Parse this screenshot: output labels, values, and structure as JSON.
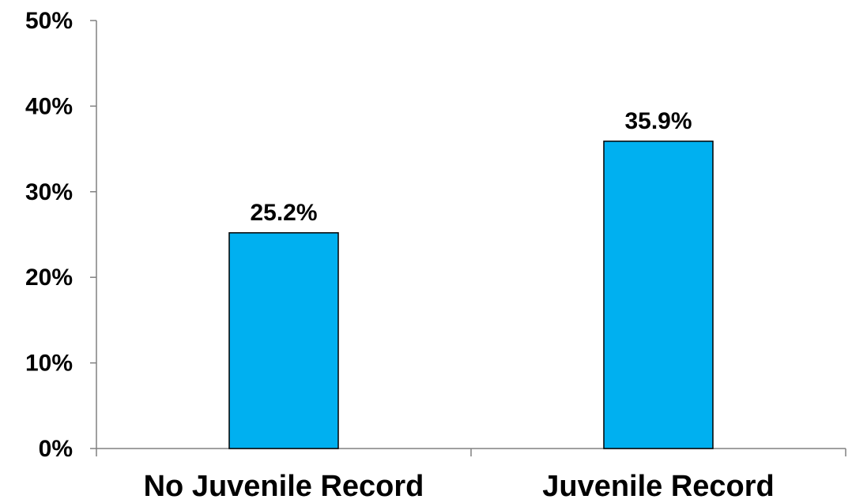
{
  "chart_data": {
    "type": "bar",
    "title": "",
    "xlabel": "",
    "ylabel": "",
    "categories": [
      "No Juvenile Record",
      "Juvenile Record"
    ],
    "values": [
      25.2,
      35.9
    ],
    "value_labels": [
      "25.2%",
      "35.9%"
    ],
    "ylim": [
      0,
      50
    ],
    "yticks": [
      0,
      10,
      20,
      30,
      40,
      50
    ],
    "ytick_labels": [
      "0%",
      "10%",
      "20%",
      "30%",
      "40%",
      "50%"
    ],
    "grid": false,
    "legend": "none",
    "colors": {
      "bar": "#00B0F0",
      "bar_outline": "#000000",
      "axis": "#808080"
    }
  }
}
